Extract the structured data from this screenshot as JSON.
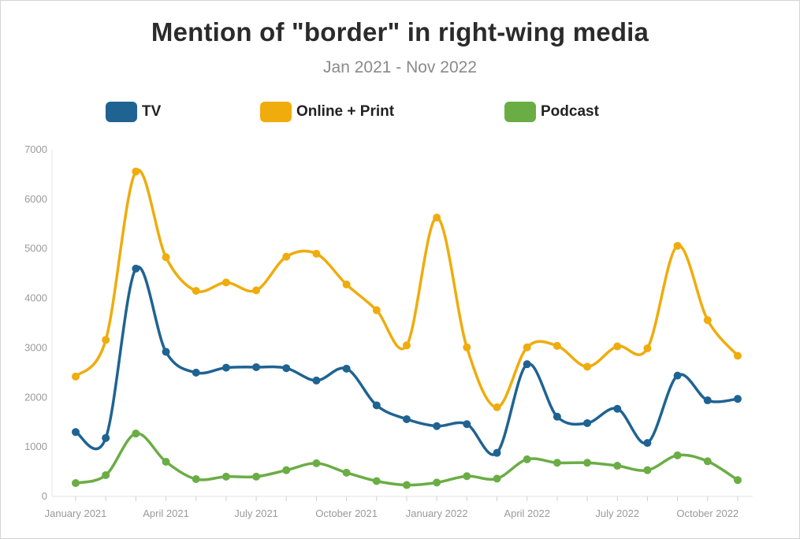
{
  "chart_data": {
    "type": "line",
    "title": "Mention of \"border\" in right-wing media",
    "subtitle": "Jan 2021 - Nov 2022",
    "xlabel": "",
    "ylabel": "",
    "ylim": [
      0,
      7000
    ],
    "yticks": [
      "0",
      "1000",
      "2000",
      "3000",
      "4000",
      "5000",
      "6000",
      "7000"
    ],
    "x": [
      "2021-01",
      "2021-02",
      "2021-03",
      "2021-04",
      "2021-05",
      "2021-06",
      "2021-07",
      "2021-08",
      "2021-09",
      "2021-10",
      "2021-11",
      "2021-12",
      "2022-01",
      "2022-02",
      "2022-03",
      "2022-04",
      "2022-05",
      "2022-06",
      "2022-07",
      "2022-08",
      "2022-09",
      "2022-10",
      "2022-11"
    ],
    "xtick_labels": [
      {
        "x": "2021-01",
        "label": "January 2021"
      },
      {
        "x": "2021-04",
        "label": "April 2021"
      },
      {
        "x": "2021-07",
        "label": "July 2021"
      },
      {
        "x": "2021-10",
        "label": "October 2021"
      },
      {
        "x": "2022-01",
        "label": "January 2022"
      },
      {
        "x": "2022-04",
        "label": "April 2022"
      },
      {
        "x": "2022-07",
        "label": "July 2022"
      },
      {
        "x": "2022-10",
        "label": "October 2022"
      }
    ],
    "grid": false,
    "legend_position": "top",
    "series": [
      {
        "name": "TV",
        "color": "#1f6392",
        "values": [
          1300,
          1180,
          4600,
          2920,
          2500,
          2600,
          2610,
          2590,
          2340,
          2580,
          1840,
          1560,
          1420,
          1460,
          880,
          2670,
          1610,
          1480,
          1770,
          1080,
          2440,
          1940,
          1970
        ]
      },
      {
        "name": "Online + Print",
        "color": "#efac0c",
        "values": [
          2420,
          3160,
          6560,
          4830,
          4150,
          4320,
          4160,
          4840,
          4900,
          4280,
          3760,
          3050,
          5630,
          3010,
          1800,
          3010,
          3040,
          2620,
          3030,
          2990,
          5060,
          3560,
          2840
        ]
      },
      {
        "name": "Podcast",
        "color": "#6aad45",
        "values": [
          270,
          430,
          1270,
          700,
          350,
          400,
          400,
          530,
          670,
          480,
          310,
          230,
          280,
          410,
          360,
          750,
          680,
          680,
          620,
          530,
          830,
          710,
          330
        ]
      }
    ]
  }
}
